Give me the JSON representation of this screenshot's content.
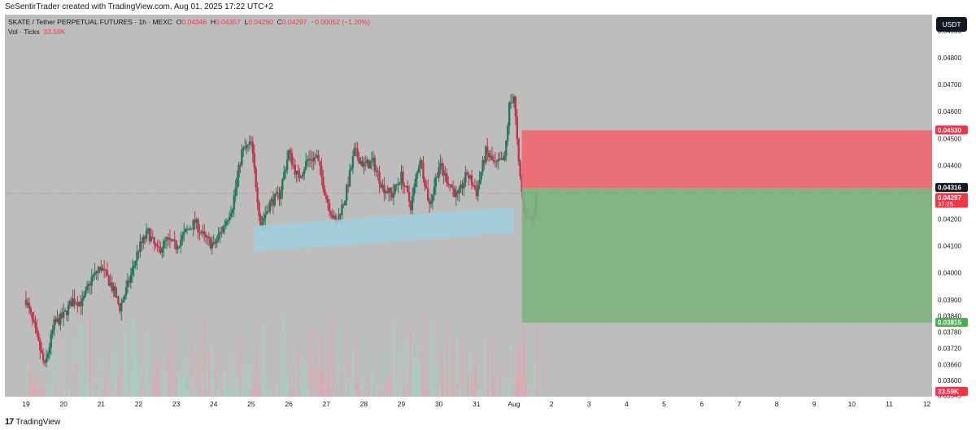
{
  "header": {
    "text": "SeSentirTrader created with TradingView.com, Aug 01, 2025 17:22 UTC+2"
  },
  "legend": {
    "symbol": "SKATE / Tether PERPETUAL FUTURES · 1h · MEXC",
    "o_label": "O",
    "o": "0.04346",
    "h_label": "H",
    "h": "0.04357",
    "l_label": "L",
    "l": "0.04290",
    "c_label": "C",
    "c": "0.04297",
    "change": "−0.00052 (−1.20%)",
    "vol_label": "Vol · Ticks",
    "vol_value": "33.59K"
  },
  "currency_button": "USDT",
  "footer": {
    "brand": "TradingView"
  },
  "colors": {
    "background": "#bdbdbd",
    "up": "#1e7a5a",
    "down": "#c2334a",
    "stop_zone": "#f0666e",
    "target_zone": "#7db37f",
    "channel": "#9fd0e0",
    "price_tag_dark": "#131722",
    "price_tag_red": "#f23645",
    "price_tag_green": "#4caf50"
  },
  "chart_data": {
    "type": "candlestick",
    "ylim": [
      0.0354,
      0.0496
    ],
    "y_ticks": [
      "0.04900",
      "0.04800",
      "0.04700",
      "0.04600",
      "0.04500",
      "0.04400",
      "0.04200",
      "0.04100",
      "0.04000",
      "0.03900",
      "0.03840",
      "0.03780",
      "0.03720",
      "0.03660",
      "0.03600",
      "0.03545"
    ],
    "x_ticks": [
      "19",
      "20",
      "21",
      "22",
      "23",
      "24",
      "25",
      "26",
      "27",
      "28",
      "29",
      "30",
      "31",
      "Aug",
      "2",
      "3",
      "4",
      "5",
      "6",
      "7",
      "8",
      "9",
      "10",
      "11",
      "12"
    ],
    "price_labels": [
      {
        "value": 0.0453,
        "text": "0.04530",
        "color": "#f23645"
      },
      {
        "value": 0.04316,
        "text": "0.04316",
        "color": "#131722"
      },
      {
        "value": 0.04297,
        "text": "0.04297",
        "color": "#f23645",
        "sub": "37:25"
      },
      {
        "value": 0.03815,
        "text": "0.03815",
        "color": "#4caf50"
      }
    ],
    "volume_label": "33.59K",
    "position": {
      "entry": 0.04316,
      "stop": 0.0453,
      "target": 0.03815,
      "x_start": "Aug 1 05:00",
      "x_end": "Aug 12"
    },
    "channel": {
      "bottom": [
        [
          "Jul 25 02:00",
          0.0408
        ],
        [
          "Aug 1 00:00",
          0.0415
        ]
      ],
      "top": [
        [
          "Jul 25 02:00",
          0.04175
        ],
        [
          "Aug 1 00:00",
          0.04245
        ]
      ]
    },
    "path": [
      [
        "Jul 19 00:00",
        0.039
      ],
      [
        "Jul 19 06:00",
        0.0378
      ],
      [
        "Jul 19 12:00",
        0.0365
      ],
      [
        "Jul 19 18:00",
        0.0381
      ],
      [
        "Jul 20 00:00",
        0.0384
      ],
      [
        "Jul 20 06:00",
        0.039
      ],
      [
        "Jul 20 12:00",
        0.0389
      ],
      [
        "Jul 20 18:00",
        0.0398
      ],
      [
        "Jul 21 00:00",
        0.0402
      ],
      [
        "Jul 21 06:00",
        0.0396
      ],
      [
        "Jul 21 12:00",
        0.0387
      ],
      [
        "Jul 21 18:00",
        0.0397
      ],
      [
        "Jul 22 00:00",
        0.0409
      ],
      [
        "Jul 22 06:00",
        0.0415
      ],
      [
        "Jul 22 12:00",
        0.0408
      ],
      [
        "Jul 22 18:00",
        0.0412
      ],
      [
        "Jul 23 00:00",
        0.041
      ],
      [
        "Jul 23 06:00",
        0.0415
      ],
      [
        "Jul 23 12:00",
        0.0419
      ],
      [
        "Jul 23 18:00",
        0.0413
      ],
      [
        "Jul 24 00:00",
        0.041
      ],
      [
        "Jul 24 06:00",
        0.0417
      ],
      [
        "Jul 24 12:00",
        0.0425
      ],
      [
        "Jul 24 18:00",
        0.0445
      ],
      [
        "Jul 25 00:00",
        0.0448
      ],
      [
        "Jul 25 06:00",
        0.0418
      ],
      [
        "Jul 25 12:00",
        0.0426
      ],
      [
        "Jul 25 18:00",
        0.0429
      ],
      [
        "Jul 26 00:00",
        0.0445
      ],
      [
        "Jul 26 06:00",
        0.0435
      ],
      [
        "Jul 26 12:00",
        0.0442
      ],
      [
        "Jul 26 18:00",
        0.0443
      ],
      [
        "Jul 27 00:00",
        0.0428
      ],
      [
        "Jul 27 06:00",
        0.0418
      ],
      [
        "Jul 27 12:00",
        0.0428
      ],
      [
        "Jul 27 18:00",
        0.0445
      ],
      [
        "Jul 28 00:00",
        0.044
      ],
      [
        "Jul 28 06:00",
        0.0441
      ],
      [
        "Jul 28 12:00",
        0.0432
      ],
      [
        "Jul 28 18:00",
        0.0429
      ],
      [
        "Jul 29 00:00",
        0.0436
      ],
      [
        "Jul 29 06:00",
        0.0425
      ],
      [
        "Jul 29 12:00",
        0.0443
      ],
      [
        "Jul 29 18:00",
        0.0425
      ],
      [
        "Jul 30 00:00",
        0.044
      ],
      [
        "Jul 30 06:00",
        0.0434
      ],
      [
        "Jul 30 12:00",
        0.0428
      ],
      [
        "Jul 30 18:00",
        0.0437
      ],
      [
        "Jul 31 00:00",
        0.043
      ],
      [
        "Jul 31 06:00",
        0.0445
      ],
      [
        "Jul 31 12:00",
        0.044
      ],
      [
        "Jul 31 18:00",
        0.0442
      ],
      [
        "Jul 31 21:00",
        0.0462
      ],
      [
        "Aug 1 00:00",
        0.0466
      ],
      [
        "Aug 1 03:00",
        0.044
      ],
      [
        "Aug 1 06:00",
        0.0425
      ],
      [
        "Aug 1 09:00",
        0.042
      ],
      [
        "Aug 1 12:00",
        0.0421
      ],
      [
        "Aug 1 15:00",
        0.043
      ]
    ]
  }
}
